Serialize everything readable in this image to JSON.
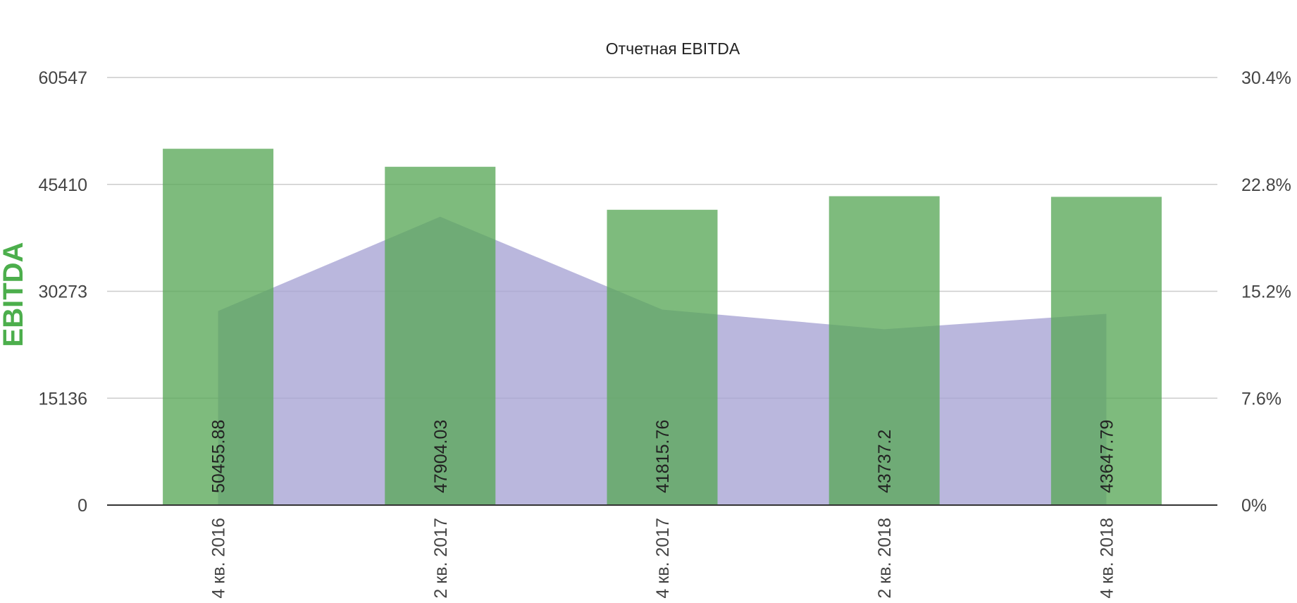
{
  "chart_data": {
    "type": "bar",
    "title": "Отчетная EBITDA",
    "ylabel": "EBITDA",
    "categories": [
      "4 кв. 2016",
      "2 кв. 2017",
      "4 кв. 2017",
      "2 кв. 2018",
      "4 кв. 2018"
    ],
    "series": [
      {
        "type": "bar",
        "axis": "left",
        "values": [
          50455.88,
          47904.03,
          41815.76,
          43737.2,
          43647.79
        ],
        "data_labels": [
          "50455.88",
          "47904.03",
          "41815.76",
          "43737.2",
          "43647.79"
        ],
        "color": "#5aa858"
      },
      {
        "type": "area",
        "axis": "right",
        "unit": "%",
        "values": [
          13.8,
          20.5,
          13.9,
          12.5,
          13.6
        ],
        "color": "#a7a3d4"
      }
    ],
    "y_left": {
      "ylim": [
        0,
        60547
      ],
      "ticks": [
        "0",
        "15136",
        "30273",
        "45410",
        "60547"
      ]
    },
    "y_right": {
      "ylim": [
        0,
        30.4
      ],
      "ticks": [
        "0%",
        "7.6%",
        "15.2%",
        "22.8%",
        "30.4%"
      ]
    },
    "grid": true,
    "legend": "none",
    "colors": {
      "bar": "#5aa858",
      "area": "#a7a3d4",
      "ylabel": "#4cae4c",
      "grid": "#cccccc",
      "baseline": "#333333"
    }
  }
}
